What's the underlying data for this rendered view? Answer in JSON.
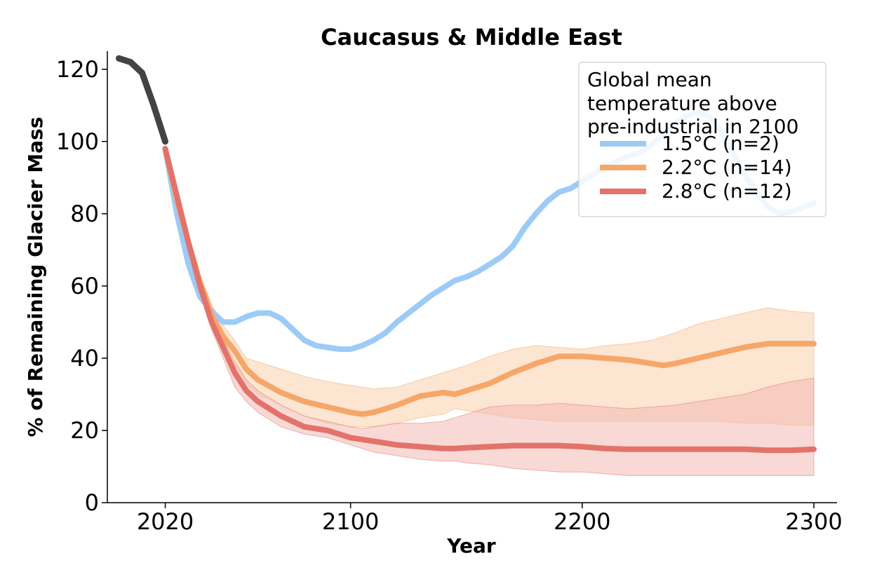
{
  "chart_data": {
    "type": "line",
    "title": "Caucasus & Middle East",
    "xlabel": "Year",
    "ylabel": "% of Remaining Glacier Mass",
    "xlim": [
      1995,
      2310
    ],
    "ylim": [
      0,
      125
    ],
    "xticks": [
      2020,
      2100,
      2200,
      2300
    ],
    "yticks": [
      0,
      20,
      40,
      60,
      80,
      100,
      120
    ],
    "legend": {
      "title": "Global mean temperature above pre-industrial in 2100",
      "title_lines": [
        "Global mean",
        "temperature above",
        "pre-industrial in 2100"
      ],
      "placement": "top-right"
    },
    "historical": [
      {
        "x": 2000,
        "y": 123
      },
      {
        "x": 2005,
        "y": 122
      },
      {
        "x": 2010,
        "y": 119
      },
      {
        "x": 2015,
        "y": 110
      },
      {
        "x": 2020,
        "y": 100
      }
    ],
    "series": [
      {
        "name": "1.5°C (n=2)",
        "color": "#9ccbf6",
        "band_color": "#cfe5fb",
        "x": [
          2020,
          2025,
          2030,
          2035,
          2040,
          2045,
          2050,
          2055,
          2060,
          2065,
          2070,
          2075,
          2080,
          2085,
          2090,
          2095,
          2100,
          2105,
          2110,
          2115,
          2120,
          2125,
          2130,
          2135,
          2140,
          2145,
          2150,
          2155,
          2160,
          2165,
          2170,
          2175,
          2180,
          2185,
          2190,
          2195,
          2200,
          2205,
          2210,
          2215,
          2220,
          2225,
          2230,
          2235,
          2240,
          2245,
          2250,
          2255,
          2260,
          2265,
          2270,
          2275,
          2280,
          2285,
          2290,
          2295,
          2300
        ],
        "y": [
          98,
          80,
          66,
          57,
          53,
          50,
          50,
          51.5,
          52.5,
          52.5,
          51,
          48,
          45,
          43.5,
          43,
          42.5,
          42.5,
          43.5,
          45,
          47,
          50,
          52.5,
          55,
          57.5,
          59.5,
          61.5,
          62.5,
          64,
          66,
          68,
          71,
          76,
          80,
          83.5,
          86,
          87,
          89,
          91,
          93,
          94.5,
          96,
          97,
          99,
          102,
          105,
          107,
          108,
          107,
          103,
          97,
          91,
          86,
          82,
          80,
          80.5,
          81.5,
          83
        ],
        "lower": [
          97,
          79,
          65,
          56,
          52,
          49.5,
          49.5,
          51,
          52,
          52,
          50.5,
          47.5,
          44.5,
          43,
          42.5,
          42,
          42,
          43,
          44.5,
          46.5,
          49.5,
          52,
          54.5,
          57,
          59,
          61,
          62,
          63.5,
          65.5,
          67.5,
          70.5,
          75.5,
          79.5,
          83,
          85.5,
          86.5,
          88.5,
          90.5,
          92.5,
          94,
          95.5,
          96.5,
          98.5,
          101.5,
          104.5,
          106.5,
          107.5,
          106.5,
          102.5,
          96.5,
          90.5,
          85.5,
          81.5,
          79.5,
          80,
          81,
          82.5
        ],
        "upper": [
          99,
          81,
          67,
          58,
          54,
          50.5,
          50.5,
          52,
          53,
          53,
          51.5,
          48.5,
          45.5,
          44,
          43.5,
          43,
          43,
          44,
          45.5,
          47.5,
          50.5,
          53,
          55.5,
          58,
          60,
          62,
          63,
          64.5,
          66.5,
          68.5,
          71.5,
          76.5,
          80.5,
          84,
          86.5,
          87.5,
          89.5,
          91.5,
          93.5,
          95,
          96.5,
          97.5,
          99.5,
          102.5,
          105.5,
          107.5,
          108.5,
          107.5,
          103.5,
          97.5,
          91.5,
          86.5,
          82.5,
          80.5,
          81,
          82,
          83.5
        ]
      },
      {
        "name": "2.2°C (n=14)",
        "color": "#f5a76a",
        "band_color": "#f9cfac",
        "x": [
          2020,
          2025,
          2030,
          2035,
          2040,
          2045,
          2050,
          2055,
          2060,
          2070,
          2080,
          2090,
          2100,
          2105,
          2110,
          2120,
          2130,
          2140,
          2145,
          2150,
          2160,
          2170,
          2180,
          2190,
          2200,
          2210,
          2220,
          2230,
          2235,
          2240,
          2250,
          2260,
          2270,
          2280,
          2290,
          2300
        ],
        "y": [
          98,
          84,
          72,
          61,
          52,
          46,
          42,
          37,
          34,
          30.5,
          28,
          26.5,
          25,
          24.5,
          25,
          27,
          29.5,
          30.5,
          30,
          31,
          33,
          36,
          38.5,
          40.5,
          40.5,
          40,
          39.5,
          38.5,
          38,
          38.5,
          40,
          41.5,
          43,
          44,
          44,
          44
        ],
        "lower": [
          98,
          84,
          71,
          60,
          50,
          43,
          38,
          33,
          30,
          27,
          24,
          22,
          21,
          21,
          21,
          22,
          23.5,
          24.5,
          26,
          25.5,
          24.5,
          23.5,
          23,
          22.5,
          22.5,
          22.5,
          22.5,
          22.5,
          22.5,
          22.5,
          22.5,
          22.5,
          22,
          22,
          21.5,
          21.5
        ],
        "upper": [
          98,
          85,
          74,
          63,
          55,
          49,
          45,
          40,
          39,
          37,
          35,
          33.5,
          32.5,
          32,
          31.5,
          32,
          34,
          36,
          37,
          38,
          40.5,
          42.5,
          43.5,
          43,
          42.5,
          43.5,
          44,
          45,
          46,
          47,
          49.5,
          51,
          52.5,
          54,
          53,
          52.5
        ]
      },
      {
        "name": "2.8°C (n=12)",
        "color": "#e3736a",
        "band_color": "#f2b9b4",
        "x": [
          2020,
          2025,
          2030,
          2035,
          2040,
          2045,
          2050,
          2055,
          2060,
          2070,
          2080,
          2090,
          2100,
          2105,
          2110,
          2120,
          2130,
          2140,
          2145,
          2150,
          2160,
          2170,
          2180,
          2190,
          2200,
          2210,
          2220,
          2230,
          2240,
          2250,
          2260,
          2270,
          2280,
          2290,
          2300
        ],
        "y": [
          98,
          85,
          72,
          60,
          50,
          43,
          36,
          31,
          28,
          24,
          21,
          20,
          18,
          17.5,
          17,
          16,
          15.5,
          15,
          15,
          15.2,
          15.5,
          15.8,
          15.8,
          15.8,
          15.5,
          15,
          14.8,
          14.8,
          14.8,
          14.8,
          14.8,
          14.8,
          14.5,
          14.5,
          14.8
        ],
        "lower": [
          98,
          84,
          71,
          58,
          48,
          40,
          32,
          28,
          25,
          21,
          19,
          18,
          16,
          15,
          14,
          13,
          12,
          11.5,
          11.5,
          11,
          10.5,
          9.5,
          9,
          8.5,
          8.5,
          8,
          7.5,
          7.5,
          7.5,
          7.5,
          7.5,
          7.5,
          7.5,
          7.5,
          7.5
        ],
        "upper": [
          98,
          86,
          73,
          62,
          52,
          45,
          39,
          34,
          31,
          27,
          24,
          22.5,
          21,
          20.5,
          21,
          22,
          22,
          22.5,
          23.5,
          24.5,
          26.5,
          27,
          27,
          27.5,
          27,
          26.5,
          26,
          26.5,
          27,
          28,
          29,
          30,
          32,
          33.5,
          34.5
        ]
      }
    ]
  }
}
